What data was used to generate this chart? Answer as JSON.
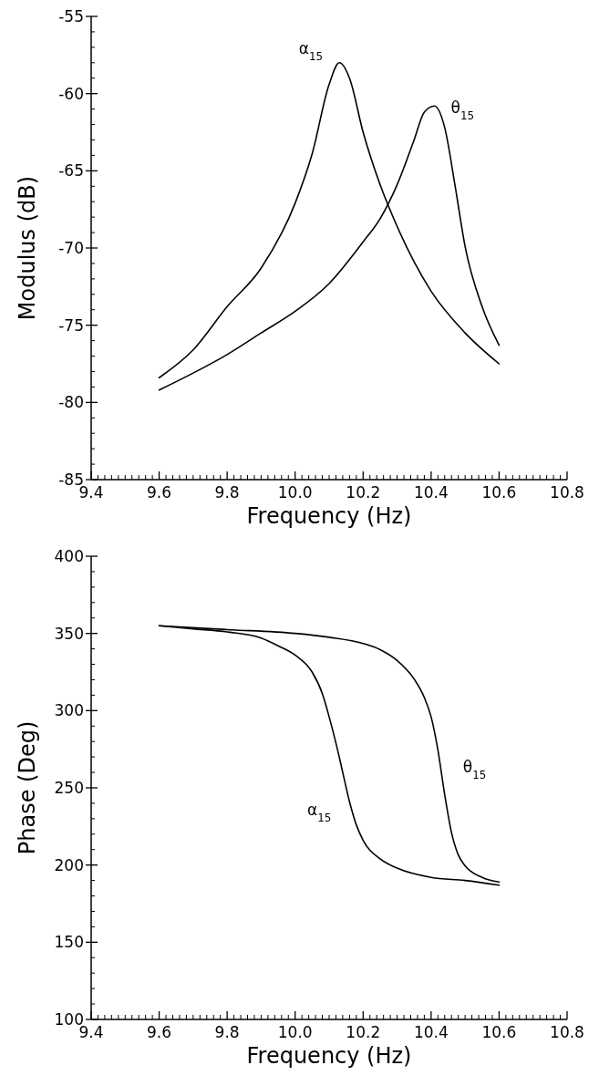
{
  "chart_data": [
    {
      "type": "line",
      "xlabel": "Frequency (Hz)",
      "ylabel": "Modulus (dB)",
      "xlim": [
        9.4,
        10.8
      ],
      "xticks": [
        9.4,
        9.6,
        9.8,
        {
          "value": 10,
          "label": "10.0"
        },
        10.2,
        10.4,
        10.6,
        10.8
      ],
      "ylim": [
        -85,
        -55
      ],
      "yticks": [
        -85,
        -80,
        -75,
        -70,
        -65,
        -60,
        -55
      ],
      "series": [
        {
          "name": "α$_{15}$",
          "color": "#000000",
          "x": [
            9.6,
            9.7,
            9.8,
            9.9,
            10.0,
            10.05,
            10.1,
            10.13,
            10.16,
            10.2,
            10.25,
            10.3,
            10.35,
            10.4,
            10.5,
            10.6
          ],
          "values": [
            -78.4,
            -76.6,
            -73.8,
            -71.3,
            -67.1,
            -63.9,
            -59.4,
            -58.0,
            -59.0,
            -62.5,
            -65.9,
            -68.6,
            -70.9,
            -72.8,
            -75.5,
            -77.5
          ]
        },
        {
          "name": "θ$_{15}$",
          "color": "#000000",
          "x": [
            9.6,
            9.7,
            9.8,
            9.9,
            10.0,
            10.1,
            10.2,
            10.25,
            10.3,
            10.35,
            10.38,
            10.41,
            10.44,
            10.47,
            10.5,
            10.55,
            10.6
          ],
          "values": [
            -79.2,
            -78.1,
            -76.9,
            -75.5,
            -74.1,
            -72.3,
            -69.6,
            -68.1,
            -65.9,
            -63.0,
            -61.2,
            -60.8,
            -62.2,
            -65.9,
            -69.9,
            -73.8,
            -76.3
          ]
        }
      ]
    },
    {
      "type": "line",
      "xlabel": "Frequency (Hz)",
      "ylabel": "Phase (Deg)",
      "xlim": [
        9.4,
        10.8
      ],
      "xticks": [
        9.4,
        9.6,
        9.8,
        {
          "value": 10,
          "label": "10.0"
        },
        10.2,
        10.4,
        10.6,
        10.8
      ],
      "ylim": [
        100,
        400
      ],
      "yticks": [
        100,
        150,
        200,
        250,
        300,
        350,
        400
      ],
      "series": [
        {
          "name": "α$_{15}$",
          "color": "#000000",
          "x": [
            9.6,
            9.7,
            9.8,
            9.9,
            9.95,
            10.0,
            10.05,
            10.08,
            10.1,
            10.12,
            10.14,
            10.16,
            10.18,
            10.2,
            10.25,
            10.3,
            10.4,
            10.5,
            10.6
          ],
          "values": [
            355,
            353,
            351,
            347,
            342,
            336,
            325,
            311,
            296,
            279,
            260,
            241,
            226,
            216,
            204,
            198,
            192,
            190,
            187
          ]
        },
        {
          "name": "θ$_{15}$",
          "color": "#000000",
          "x": [
            9.6,
            9.8,
            10.0,
            10.1,
            10.2,
            10.25,
            10.3,
            10.35,
            10.38,
            10.4,
            10.42,
            10.44,
            10.46,
            10.48,
            10.5,
            10.55,
            10.6
          ],
          "values": [
            355,
            352.5,
            350,
            347.5,
            343.5,
            339.5,
            332.5,
            320.5,
            308.5,
            296,
            274.5,
            245.5,
            221,
            206.5,
            199.5,
            192,
            189
          ]
        }
      ]
    }
  ]
}
